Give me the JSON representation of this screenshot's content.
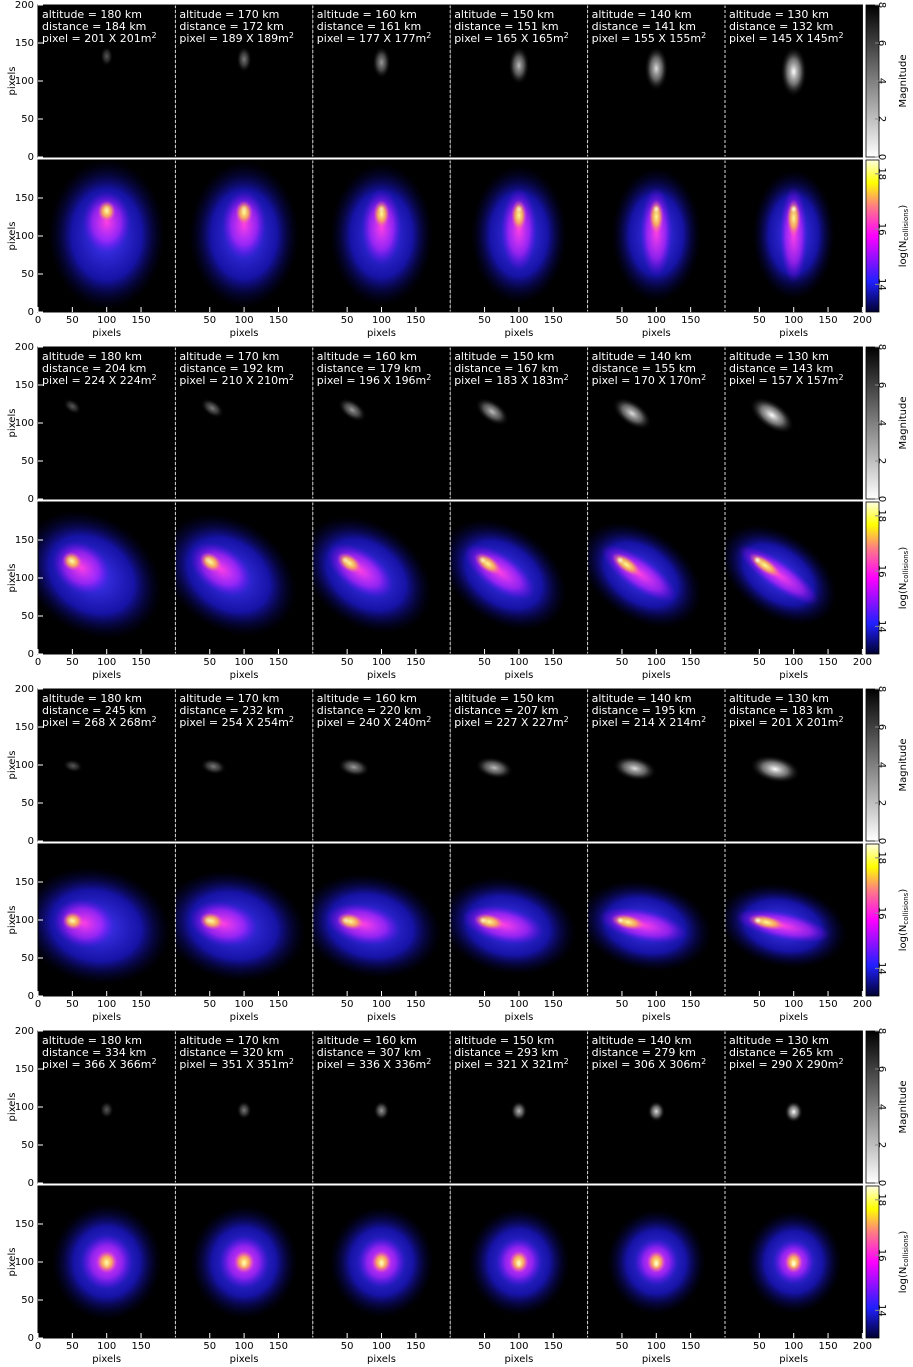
{
  "chart_data": {
    "type": "image-grid",
    "xlabel": "pixels",
    "ylabel": "pixels",
    "xlim": [
      0,
      200
    ],
    "ylim": [
      0,
      200
    ],
    "xticks_first": [
      0,
      50,
      100,
      150
    ],
    "xticks_middle": [
      50,
      100,
      150
    ],
    "xticks_last": [
      50,
      100,
      150,
      200
    ],
    "yticks_top": [
      0,
      50,
      100,
      150,
      200
    ],
    "yticks_bottom": [
      0,
      50,
      100,
      150
    ],
    "colorbar_top": {
      "label": "Magnitude",
      "lim": [
        0,
        8
      ],
      "ticks": [
        0,
        2,
        4,
        6,
        8
      ]
    },
    "colorbar_bottom": {
      "label": "log(N",
      "label_sub": "collisions",
      "label_end": ")",
      "lim": [
        13,
        18.5
      ],
      "ticks": [
        14,
        16,
        18
      ]
    },
    "blocks": [
      {
        "panels": [
          {
            "altitude": "altitude = 180 km",
            "distance": "distance = 184 km",
            "pixel": "pixel = 201 X 201m",
            "pixel_sup": "2"
          },
          {
            "altitude": "altitude = 170 km",
            "distance": "distance = 172 km",
            "pixel": "pixel = 189 X 189m",
            "pixel_sup": "2"
          },
          {
            "altitude": "altitude = 160 km",
            "distance": "distance = 161 km",
            "pixel": "pixel = 177 X 177m",
            "pixel_sup": "2"
          },
          {
            "altitude": "altitude = 150 km",
            "distance": "distance = 151 km",
            "pixel": "pixel = 165 X 165m",
            "pixel_sup": "2"
          },
          {
            "altitude": "altitude = 140 km",
            "distance": "distance = 141 km",
            "pixel": "pixel = 155 X 155m",
            "pixel_sup": "2"
          },
          {
            "altitude": "altitude = 130 km",
            "distance": "distance = 132 km",
            "pixel": "pixel = 145 X 145m",
            "pixel_sup": "2"
          }
        ]
      },
      {
        "panels": [
          {
            "altitude": "altitude = 180 km",
            "distance": "distance = 204 km",
            "pixel": "pixel = 224 X 224m",
            "pixel_sup": "2"
          },
          {
            "altitude": "altitude = 170 km",
            "distance": "distance = 192 km",
            "pixel": "pixel = 210 X 210m",
            "pixel_sup": "2"
          },
          {
            "altitude": "altitude = 160 km",
            "distance": "distance = 179 km",
            "pixel": "pixel = 196 X 196m",
            "pixel_sup": "2"
          },
          {
            "altitude": "altitude = 150 km",
            "distance": "distance = 167 km",
            "pixel": "pixel = 183 X 183m",
            "pixel_sup": "2"
          },
          {
            "altitude": "altitude = 140 km",
            "distance": "distance = 155 km",
            "pixel": "pixel = 170 X 170m",
            "pixel_sup": "2"
          },
          {
            "altitude": "altitude = 130 km",
            "distance": "distance = 143 km",
            "pixel": "pixel = 157 X 157m",
            "pixel_sup": "2"
          }
        ]
      },
      {
        "panels": [
          {
            "altitude": "altitude = 180 km",
            "distance": "distance = 245 km",
            "pixel": "pixel = 268 X 268m",
            "pixel_sup": "2"
          },
          {
            "altitude": "altitude = 170 km",
            "distance": "distance = 232 km",
            "pixel": "pixel = 254 X 254m",
            "pixel_sup": "2"
          },
          {
            "altitude": "altitude = 160 km",
            "distance": "distance = 220 km",
            "pixel": "pixel = 240 X 240m",
            "pixel_sup": "2"
          },
          {
            "altitude": "altitude = 150 km",
            "distance": "distance = 207 km",
            "pixel": "pixel = 227 X 227m",
            "pixel_sup": "2"
          },
          {
            "altitude": "altitude = 140 km",
            "distance": "distance = 195 km",
            "pixel": "pixel = 214 X 214m",
            "pixel_sup": "2"
          },
          {
            "altitude": "altitude = 130 km",
            "distance": "distance = 183 km",
            "pixel": "pixel = 201 X 201m",
            "pixel_sup": "2"
          }
        ]
      },
      {
        "panels": [
          {
            "altitude": "altitude = 180 km",
            "distance": "distance = 334 km",
            "pixel": "pixel = 366 X 366m",
            "pixel_sup": "2"
          },
          {
            "altitude": "altitude = 170 km",
            "distance": "distance = 320 km",
            "pixel": "pixel = 351 X 351m",
            "pixel_sup": "2"
          },
          {
            "altitude": "altitude = 160 km",
            "distance": "distance = 307 km",
            "pixel": "pixel = 336 X 336m",
            "pixel_sup": "2"
          },
          {
            "altitude": "altitude = 150 km",
            "distance": "distance = 293 km",
            "pixel": "pixel = 321 X 321m",
            "pixel_sup": "2"
          },
          {
            "altitude": "altitude = 140 km",
            "distance": "distance = 279 km",
            "pixel": "pixel = 306 X 306m",
            "pixel_sup": "2"
          },
          {
            "altitude": "altitude = 130 km",
            "distance": "distance = 265 km",
            "pixel": "pixel = 290 X 290m",
            "pixel_sup": "2"
          }
        ]
      }
    ]
  }
}
